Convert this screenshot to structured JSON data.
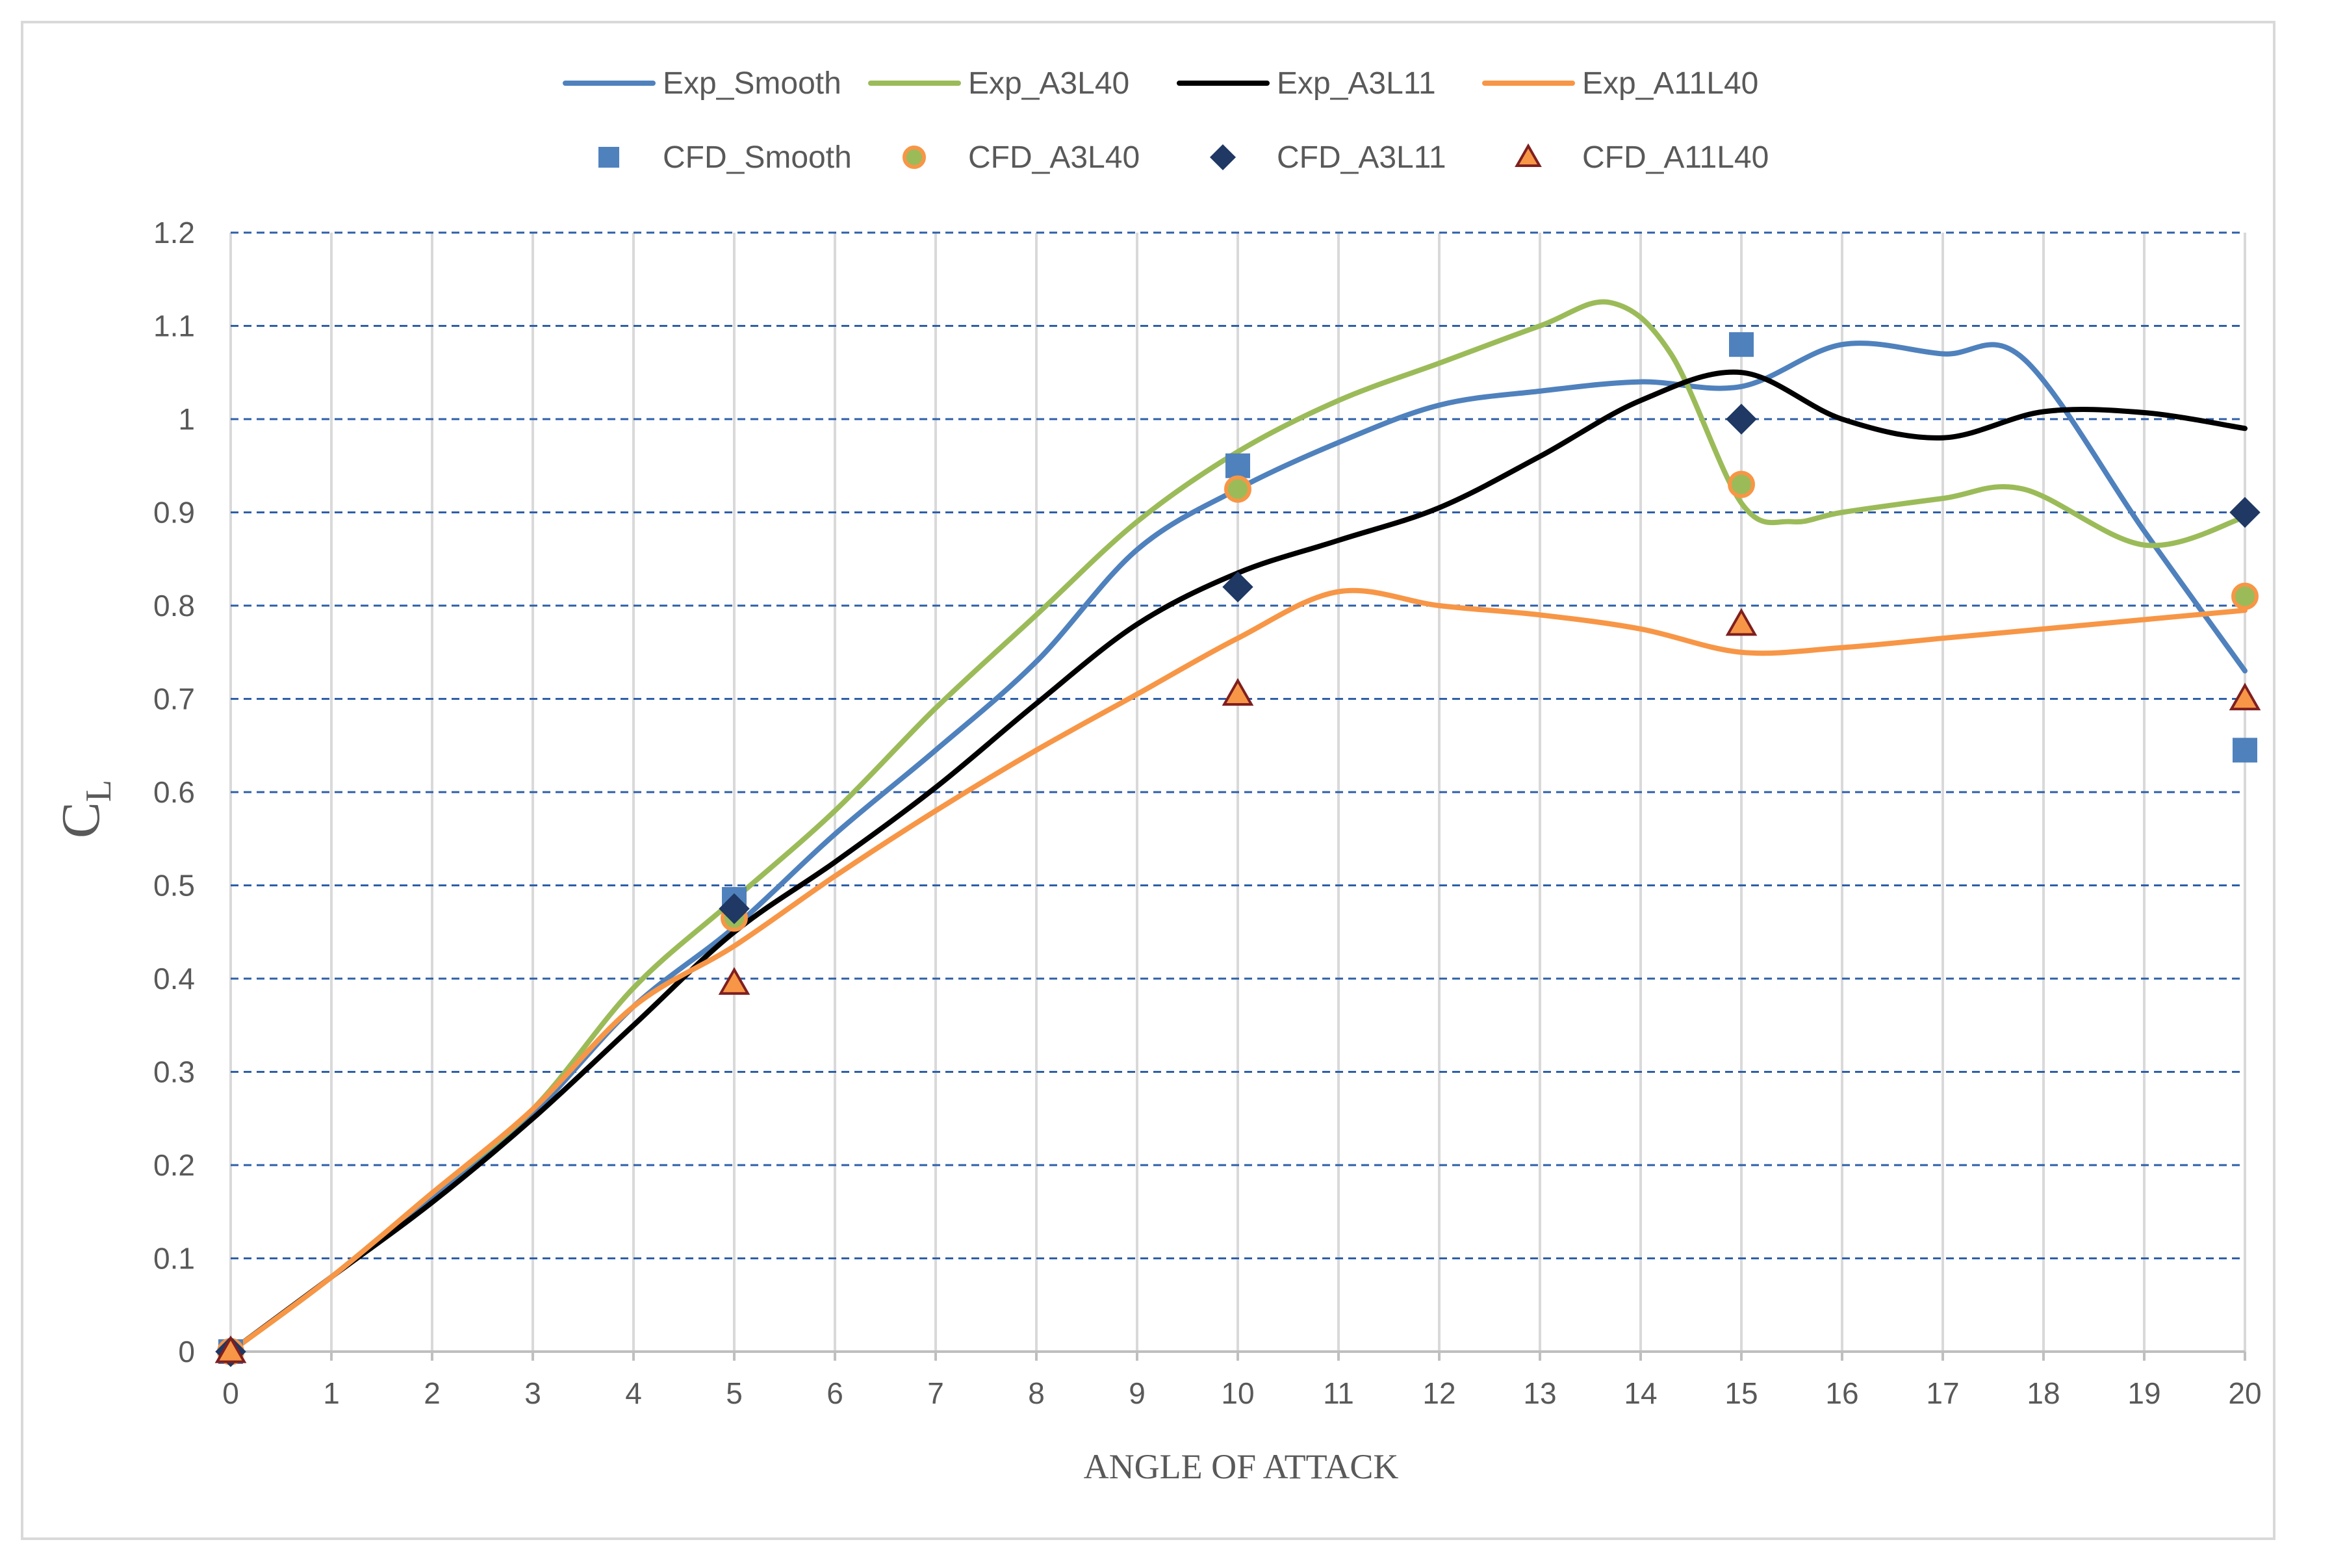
{
  "chart_data": {
    "type": "line",
    "title": "",
    "xlabel": "ANGLE OF ATTACK",
    "ylabel": "C",
    "ylabel_subscript": "L",
    "xlim": [
      0,
      20
    ],
    "ylim": [
      0,
      1.2
    ],
    "x_ticks": [
      0,
      1,
      2,
      3,
      4,
      5,
      6,
      7,
      8,
      9,
      10,
      11,
      12,
      13,
      14,
      15,
      16,
      17,
      18,
      19,
      20
    ],
    "y_ticks": [
      "0",
      "0.1",
      "0.2",
      "0.3",
      "0.4",
      "0.5",
      "0.6",
      "0.7",
      "0.8",
      "0.9",
      "1",
      "1.1",
      "1.2"
    ],
    "grid": "horizontal dashed (blue) and vertical solid (gray)",
    "legend_position": "top",
    "line_series": [
      {
        "name": "Exp_Smooth",
        "color": "#4f81bd",
        "points": [
          [
            0,
            0
          ],
          [
            1,
            0.08
          ],
          [
            2,
            0.165
          ],
          [
            3,
            0.255
          ],
          [
            4,
            0.37
          ],
          [
            5,
            0.455
          ],
          [
            6,
            0.555
          ],
          [
            7,
            0.645
          ],
          [
            8,
            0.74
          ],
          [
            9,
            0.86
          ],
          [
            10,
            0.925
          ],
          [
            11,
            0.975
          ],
          [
            12,
            1.015
          ],
          [
            13,
            1.03
          ],
          [
            14,
            1.04
          ],
          [
            15,
            1.035
          ],
          [
            16,
            1.08
          ],
          [
            17,
            1.07
          ],
          [
            17.8,
            1.065
          ],
          [
            19,
            0.88
          ],
          [
            20,
            0.73
          ]
        ]
      },
      {
        "name": "Exp_A3L40",
        "color": "#9bbb59",
        "points": [
          [
            0,
            0
          ],
          [
            1,
            0.08
          ],
          [
            2,
            0.17
          ],
          [
            3,
            0.26
          ],
          [
            4,
            0.39
          ],
          [
            5,
            0.485
          ],
          [
            6,
            0.58
          ],
          [
            7,
            0.69
          ],
          [
            8,
            0.79
          ],
          [
            9,
            0.89
          ],
          [
            10,
            0.965
          ],
          [
            11,
            1.02
          ],
          [
            12,
            1.06
          ],
          [
            13,
            1.1
          ],
          [
            13.7,
            1.125
          ],
          [
            14.3,
            1.07
          ],
          [
            15,
            0.91
          ],
          [
            15.5,
            0.89
          ],
          [
            16,
            0.9
          ],
          [
            17,
            0.915
          ],
          [
            17.8,
            0.925
          ],
          [
            19,
            0.865
          ],
          [
            20,
            0.895
          ]
        ]
      },
      {
        "name": "Exp_A3L11",
        "color": "#000000",
        "points": [
          [
            0,
            0
          ],
          [
            1,
            0.08
          ],
          [
            2,
            0.16
          ],
          [
            3,
            0.25
          ],
          [
            4,
            0.35
          ],
          [
            5,
            0.45
          ],
          [
            6,
            0.525
          ],
          [
            7,
            0.605
          ],
          [
            8,
            0.695
          ],
          [
            9,
            0.78
          ],
          [
            10,
            0.835
          ],
          [
            11,
            0.87
          ],
          [
            12,
            0.905
          ],
          [
            13,
            0.96
          ],
          [
            14,
            1.02
          ],
          [
            15,
            1.05
          ],
          [
            16,
            1.0
          ],
          [
            17,
            0.98
          ],
          [
            18,
            1.008
          ],
          [
            19,
            1.007
          ],
          [
            20,
            0.99
          ]
        ]
      },
      {
        "name": "Exp_A11L40",
        "color": "#f79646",
        "points": [
          [
            0,
            0
          ],
          [
            1,
            0.08
          ],
          [
            2,
            0.17
          ],
          [
            3,
            0.26
          ],
          [
            4,
            0.37
          ],
          [
            5,
            0.435
          ],
          [
            6,
            0.51
          ],
          [
            7,
            0.58
          ],
          [
            8,
            0.645
          ],
          [
            9,
            0.705
          ],
          [
            10,
            0.765
          ],
          [
            11,
            0.815
          ],
          [
            12,
            0.8
          ],
          [
            13,
            0.79
          ],
          [
            14,
            0.775
          ],
          [
            15,
            0.75
          ],
          [
            16,
            0.755
          ],
          [
            17,
            0.765
          ],
          [
            18,
            0.775
          ],
          [
            19,
            0.785
          ],
          [
            20,
            0.795
          ]
        ]
      }
    ],
    "marker_series": [
      {
        "name": "CFD_Smooth",
        "marker": "square",
        "fill": "#4f81bd",
        "stroke": "#4f81bd",
        "points": [
          [
            0,
            0
          ],
          [
            5,
            0.485
          ],
          [
            10,
            0.95
          ],
          [
            15,
            1.08
          ],
          [
            20,
            0.645
          ]
        ]
      },
      {
        "name": "CFD_A3L40",
        "marker": "circle",
        "fill": "#9bbb59",
        "stroke": "#f79646",
        "points": [
          [
            0,
            0
          ],
          [
            5,
            0.465
          ],
          [
            10,
            0.925
          ],
          [
            15,
            0.93
          ],
          [
            20,
            0.81
          ]
        ]
      },
      {
        "name": "CFD_A3L11",
        "marker": "diamond",
        "fill": "#1f3864",
        "stroke": "#1f3864",
        "points": [
          [
            0,
            0
          ],
          [
            5,
            0.475
          ],
          [
            10,
            0.82
          ],
          [
            15,
            1.0
          ],
          [
            20,
            0.9
          ]
        ]
      },
      {
        "name": "CFD_A11L40",
        "marker": "triangle",
        "fill": "#f79646",
        "stroke": "#7f1f1f",
        "points": [
          [
            0,
            0
          ],
          [
            5,
            0.395
          ],
          [
            10,
            0.705
          ],
          [
            15,
            0.78
          ],
          [
            20,
            0.7
          ]
        ]
      }
    ]
  }
}
